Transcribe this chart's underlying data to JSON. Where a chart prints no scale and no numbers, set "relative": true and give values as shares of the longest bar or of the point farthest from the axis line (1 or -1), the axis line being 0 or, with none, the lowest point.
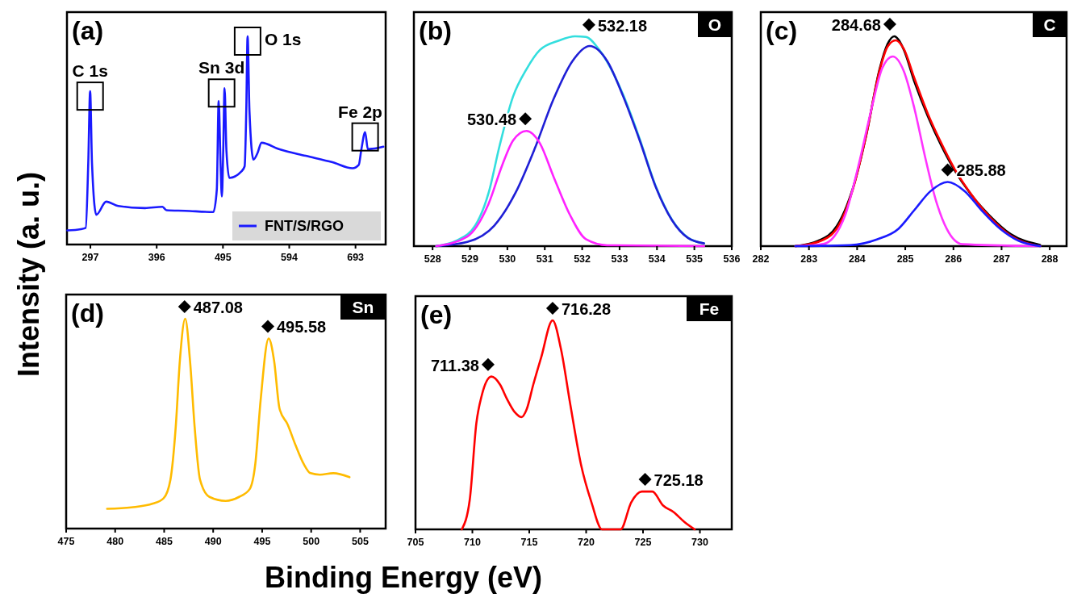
{
  "chart_data": [
    {
      "type": "line",
      "relative": true,
      "ylabel": "Intensity (a. u.)",
      "xlim": [
        262,
        738
      ],
      "xticks": [
        297,
        396,
        495,
        594,
        693
      ],
      "legend": "bottom right",
      "annotations": [
        "(a)",
        {
          "text": "C 1s",
          "x": 296.6,
          "y": 0.736
        },
        {
          "text": "Sn 3d",
          "x": 493,
          "y": 0.751
        },
        {
          "text": "O 1s",
          "x": 531.8,
          "y": 1.0
        },
        {
          "text": "Fe 2p",
          "x": 707.4,
          "y": 0.54
        }
      ],
      "series": [
        {
          "name": "FNT/S/RGO",
          "color": "#1a1aff",
          "x": [
            262.6,
            282.6,
            290,
            293.8,
            296.6,
            299.4,
            305.8,
            320.6,
            338.6,
            378.6,
            404.6,
            410.6,
            438.6,
            480.6,
            485.8,
            488.6,
            491.4,
            493.4,
            495.4,
            497.4,
            500.2,
            504.6,
            522.6,
            527.4,
            529.8,
            531.8,
            534.6,
            540.6,
            546.6,
            552.6,
            578.6,
            618.6,
            658.6,
            688.6,
            697.8,
            701.8,
            707.4,
            711.4,
            718.6,
            734.6
          ],
          "values": [
            0.068,
            0.074,
            0.08,
            0.39,
            0.736,
            0.39,
            0.143,
            0.206,
            0.185,
            0.175,
            0.181,
            0.165,
            0.162,
            0.156,
            0.263,
            0.69,
            0.39,
            0.231,
            0.45,
            0.751,
            0.45,
            0.32,
            0.351,
            0.376,
            0.64,
            1.0,
            0.64,
            0.408,
            0.439,
            0.489,
            0.458,
            0.426,
            0.395,
            0.366,
            0.382,
            0.458,
            0.54,
            0.458,
            0.46,
            0.47
          ]
        }
      ]
    },
    {
      "type": "line",
      "relative": true,
      "xlim": [
        527.5,
        536
      ],
      "xticks": [
        528,
        529,
        530,
        531,
        532,
        533,
        534,
        535,
        536
      ],
      "annotations": [
        "(b)",
        "O",
        {
          "text": "530.48",
          "x": 530.48,
          "y": 0.549
        },
        {
          "text": "532.18",
          "x": 532.18,
          "y": 0.997
        }
      ],
      "series": [
        {
          "color": "#33dede",
          "x": [
            528.1,
            528.64,
            529.14,
            529.5,
            529.79,
            530.15,
            530.51,
            530.87,
            531.38,
            531.81,
            532.1,
            532.46,
            533.1,
            533.54,
            533.97,
            534.4,
            534.83,
            535.26
          ],
          "values": [
            0,
            0.026,
            0.098,
            0.255,
            0.477,
            0.712,
            0.843,
            0.935,
            0.98,
            1.0,
            0.997,
            0.935,
            0.72,
            0.51,
            0.285,
            0.126,
            0.04,
            0.013
          ]
        },
        {
          "color": "#1f1fd6",
          "x": [
            528.1,
            528.93,
            529.65,
            530.22,
            530.73,
            531.23,
            531.74,
            532.2,
            532.67,
            533.1,
            533.54,
            533.97,
            534.4,
            534.83,
            535.26
          ],
          "values": [
            0,
            0.02,
            0.098,
            0.255,
            0.464,
            0.699,
            0.882,
            0.954,
            0.882,
            0.712,
            0.503,
            0.281,
            0.124,
            0.039,
            0.013
          ]
        },
        {
          "color": "#ff22ff",
          "x": [
            528.1,
            528.93,
            529.5,
            529.86,
            530.15,
            530.51,
            530.87,
            531.23,
            531.67,
            532.1,
            532.67,
            535.26
          ],
          "values": [
            0,
            0.046,
            0.203,
            0.385,
            0.503,
            0.549,
            0.49,
            0.333,
            0.15,
            0.033,
            0.004,
            0
          ]
        }
      ]
    },
    {
      "type": "line",
      "relative": true,
      "xlim": [
        282,
        288.35
      ],
      "xticks": [
        282,
        283,
        284,
        285,
        286,
        287,
        288
      ],
      "annotations": [
        "(c)",
        "C",
        {
          "text": "284.68",
          "x": 284.68,
          "y": 1.0
        },
        {
          "text": "285.88",
          "x": 285.88,
          "y": 0.306
        }
      ],
      "series": [
        {
          "color": "#000000",
          "x": [
            282.72,
            283.19,
            283.58,
            283.91,
            284.19,
            284.47,
            284.63,
            284.77,
            284.97,
            285.19,
            285.47,
            285.75,
            286.02,
            286.36,
            286.75,
            287.19,
            287.8
          ],
          "values": [
            0,
            0.025,
            0.096,
            0.274,
            0.529,
            0.847,
            0.962,
            1.0,
            0.936,
            0.783,
            0.618,
            0.478,
            0.363,
            0.248,
            0.146,
            0.057,
            0.006
          ]
        },
        {
          "color": "#ff0000",
          "x": [
            282.72,
            283.19,
            283.58,
            283.91,
            284.19,
            284.47,
            284.63,
            284.8,
            284.97,
            285.19,
            285.47,
            285.75,
            286.02,
            286.36,
            286.75,
            287.19,
            287.8
          ],
          "values": [
            0,
            0.02,
            0.085,
            0.27,
            0.53,
            0.84,
            0.95,
            0.981,
            0.94,
            0.8,
            0.63,
            0.49,
            0.37,
            0.25,
            0.14,
            0.05,
            0
          ]
        },
        {
          "color": "#ff33ff",
          "x": [
            282.72,
            283.3,
            283.75,
            284.02,
            284.3,
            284.52,
            284.74,
            284.97,
            285.19,
            285.41,
            285.63,
            285.86,
            286.19,
            287.8
          ],
          "values": [
            0,
            0.01,
            0.146,
            0.376,
            0.656,
            0.847,
            0.904,
            0.834,
            0.656,
            0.427,
            0.223,
            0.083,
            0.009,
            0
          ]
        },
        {
          "color": "#1a1aff",
          "x": [
            282.72,
            283.86,
            284.41,
            284.86,
            285.19,
            285.52,
            285.88,
            286.24,
            286.58,
            286.97,
            287.36,
            287.8
          ],
          "values": [
            0,
            0.005,
            0.032,
            0.083,
            0.172,
            0.261,
            0.306,
            0.261,
            0.172,
            0.083,
            0.025,
            0
          ]
        }
      ]
    },
    {
      "type": "line",
      "relative": true,
      "xlim": [
        475,
        507.6
      ],
      "xticks": [
        475,
        480,
        485,
        490,
        495,
        500,
        505
      ],
      "annotations": [
        "(d)",
        "Sn",
        {
          "text": "487.08",
          "x": 487.08,
          "y": 1.0
        },
        {
          "text": "495.58",
          "x": 495.58,
          "y": 0.906
        }
      ],
      "series": [
        {
          "color": "#ffbb00",
          "x": [
            479.18,
            481.65,
            483.85,
            484.95,
            485.64,
            486.18,
            486.6,
            487.15,
            487.64,
            488.11,
            488.66,
            489.62,
            491.27,
            492.65,
            493.74,
            494.3,
            494.84,
            495.66,
            496.22,
            496.77,
            497.59,
            498.42,
            499.24,
            499.93,
            500.89,
            502.26,
            503.91
          ],
          "values": [
            0.094,
            0.101,
            0.119,
            0.145,
            0.233,
            0.484,
            0.799,
            1.0,
            0.799,
            0.484,
            0.233,
            0.151,
            0.132,
            0.151,
            0.189,
            0.308,
            0.61,
            0.906,
            0.799,
            0.572,
            0.497,
            0.396,
            0.308,
            0.264,
            0.257,
            0.264,
            0.245
          ]
        }
      ]
    },
    {
      "type": "line",
      "relative": true,
      "xlabel": "Binding Energy (eV)",
      "xlim": [
        705,
        732.8
      ],
      "xticks": [
        705,
        710,
        715,
        720,
        725,
        730
      ],
      "annotations": [
        "(e)",
        "Fe",
        {
          "text": "711.38",
          "x": 711.38,
          "y": 0.731
        },
        {
          "text": "716.28",
          "x": 717.05,
          "y": 1.0
        },
        {
          "text": "725.18",
          "x": 725.18,
          "y": 0.181
        }
      ],
      "series": [
        {
          "color": "#ff0000",
          "x": [
            709.07,
            709.77,
            710.35,
            710.82,
            711.67,
            712.44,
            713.02,
            713.72,
            714.31,
            714.77,
            715.35,
            716.05,
            717.05,
            717.79,
            718.6,
            719.54,
            720.47,
            721.4,
            723.03,
            723.96,
            724.89,
            725.82,
            726.75,
            727.68,
            728.61,
            729.54
          ],
          "values": [
            0,
            0.142,
            0.508,
            0.64,
            0.731,
            0.692,
            0.626,
            0.561,
            0.537,
            0.574,
            0.692,
            0.823,
            1.0,
            0.862,
            0.6,
            0.312,
            0.129,
            0,
            0,
            0.129,
            0.181,
            0.181,
            0.115,
            0.083,
            0.037,
            0
          ]
        }
      ]
    }
  ]
}
